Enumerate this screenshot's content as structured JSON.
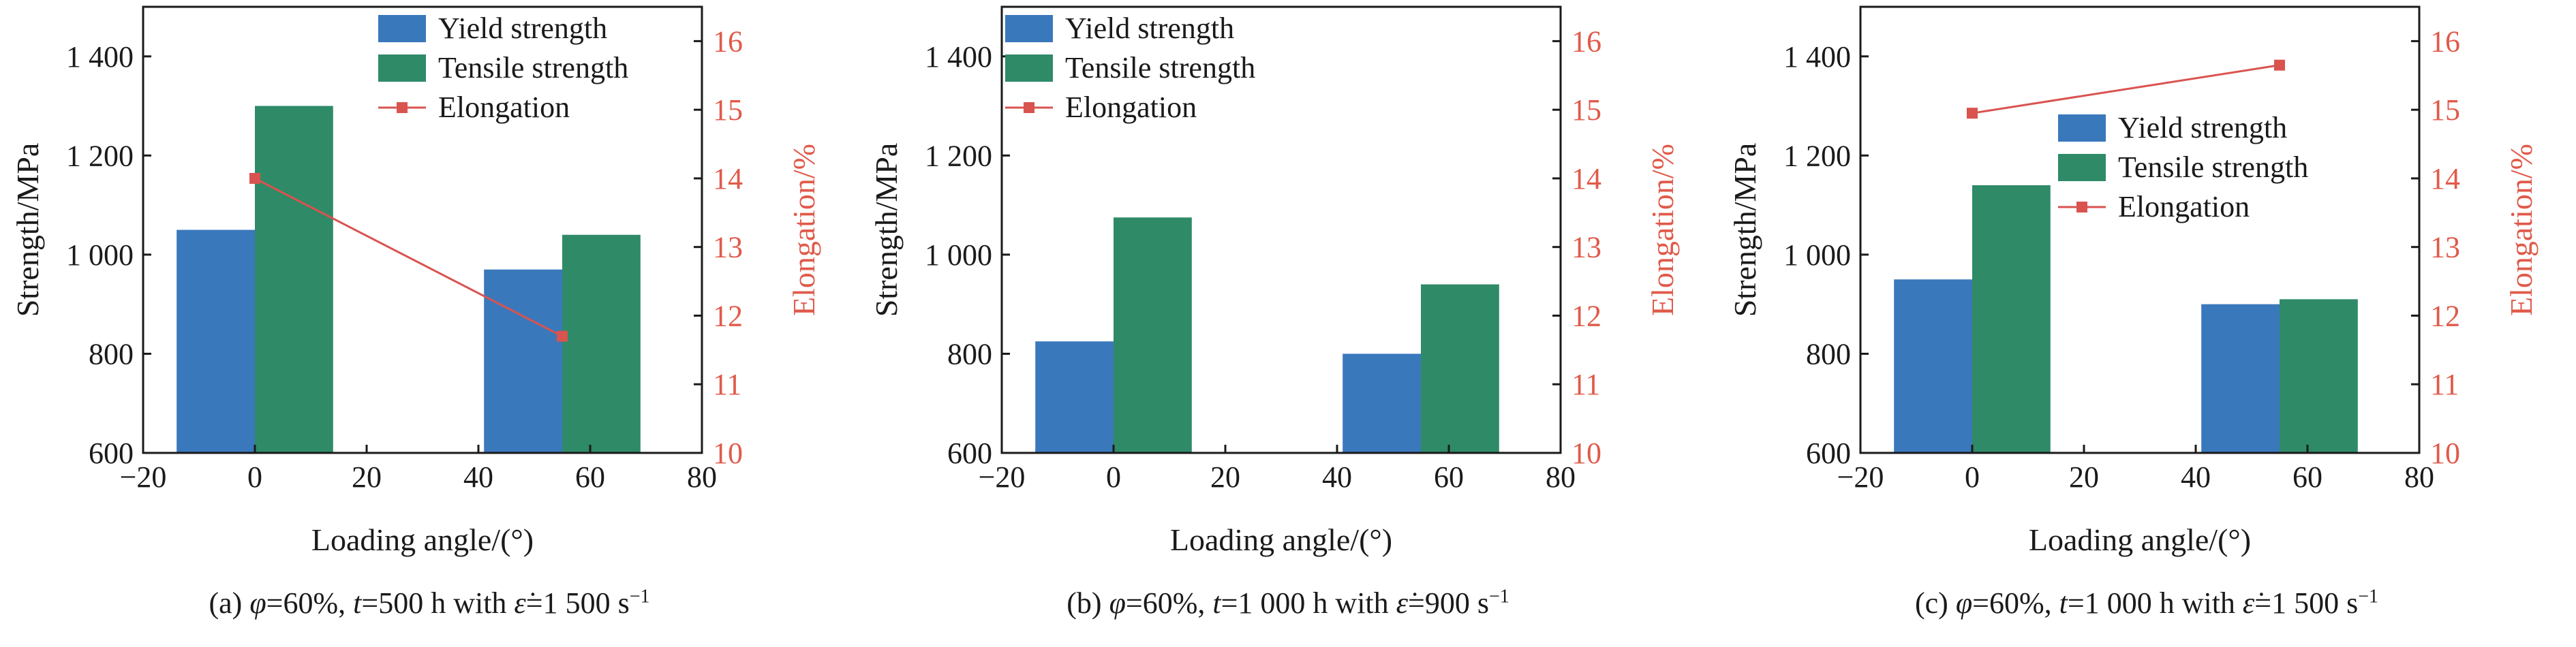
{
  "colors": {
    "yield": "#3a78bc",
    "tensile": "#2f8a68",
    "elongation": "#d9534f",
    "elongation_axis": "#e05a4a",
    "axis": "#1a1a1a"
  },
  "axes": {
    "xlabel": "Loading angle/(°)",
    "ylabel_left": "Strength/MPa",
    "ylabel_right": "Elongation/%",
    "x_ticks": [
      "−20",
      "0",
      "20",
      "40",
      "60",
      "80"
    ],
    "y_left_ticks": [
      "600",
      "800",
      "1 000",
      "1 200",
      "1 400"
    ],
    "y_right_ticks": [
      "10",
      "11",
      "12",
      "13",
      "14",
      "15",
      "16"
    ]
  },
  "legend": {
    "yield": "Yield strength",
    "tensile": "Tensile strength",
    "elongation": "Elongation"
  },
  "chart_data": [
    {
      "type": "bar",
      "caption": {
        "prefix": "(a) ",
        "phi": "φ",
        "phi_val": "=60%, ",
        "t": "t",
        "t_val": "=500 h with ",
        "eps": "ε̇",
        "eps_val": "=1 500 s",
        "eps_exp": "−1"
      },
      "legend_position": "top-right",
      "x": [
        0,
        55
      ],
      "series": [
        {
          "name": "Yield strength",
          "axis": "left",
          "values": [
            1050,
            970
          ]
        },
        {
          "name": "Tensile strength",
          "axis": "left",
          "values": [
            1300,
            1040
          ]
        },
        {
          "name": "Elongation",
          "axis": "right",
          "type": "line",
          "values": [
            14.0,
            11.7
          ]
        }
      ],
      "xlim": [
        -20,
        80
      ],
      "ylim_left": [
        600,
        1500
      ],
      "ylim_right": [
        10,
        16.5
      ]
    },
    {
      "type": "bar",
      "caption": {
        "prefix": "(b) ",
        "phi": "φ",
        "phi_val": "=60%, ",
        "t": "t",
        "t_val": "=1 000 h with ",
        "eps": "ε̇",
        "eps_val": "=900 s",
        "eps_exp": "−1"
      },
      "legend_position": "top-left",
      "x": [
        0,
        55
      ],
      "series": [
        {
          "name": "Yield strength",
          "axis": "left",
          "values": [
            825,
            800
          ]
        },
        {
          "name": "Tensile strength",
          "axis": "left",
          "values": [
            1075,
            940
          ]
        },
        {
          "name": "Elongation",
          "axis": "right",
          "type": "line",
          "values": [
            null,
            null
          ]
        }
      ],
      "xlim": [
        -20,
        80
      ],
      "ylim_left": [
        600,
        1500
      ],
      "ylim_right": [
        10,
        16.5
      ]
    },
    {
      "type": "bar",
      "caption": {
        "prefix": "(c) ",
        "phi": "φ",
        "phi_val": "=60%, ",
        "t": "t",
        "t_val": "=1 000 h with ",
        "eps": "ε̇",
        "eps_val": "=1 500 s",
        "eps_exp": "−1"
      },
      "legend_position": "right",
      "x": [
        0,
        55
      ],
      "series": [
        {
          "name": "Yield strength",
          "axis": "left",
          "values": [
            950,
            900
          ]
        },
        {
          "name": "Tensile strength",
          "axis": "left",
          "values": [
            1140,
            910
          ]
        },
        {
          "name": "Elongation",
          "axis": "right",
          "type": "line",
          "values": [
            14.95,
            15.65
          ]
        }
      ],
      "xlim": [
        -20,
        80
      ],
      "ylim_left": [
        600,
        1500
      ],
      "ylim_right": [
        10,
        16.5
      ]
    }
  ]
}
